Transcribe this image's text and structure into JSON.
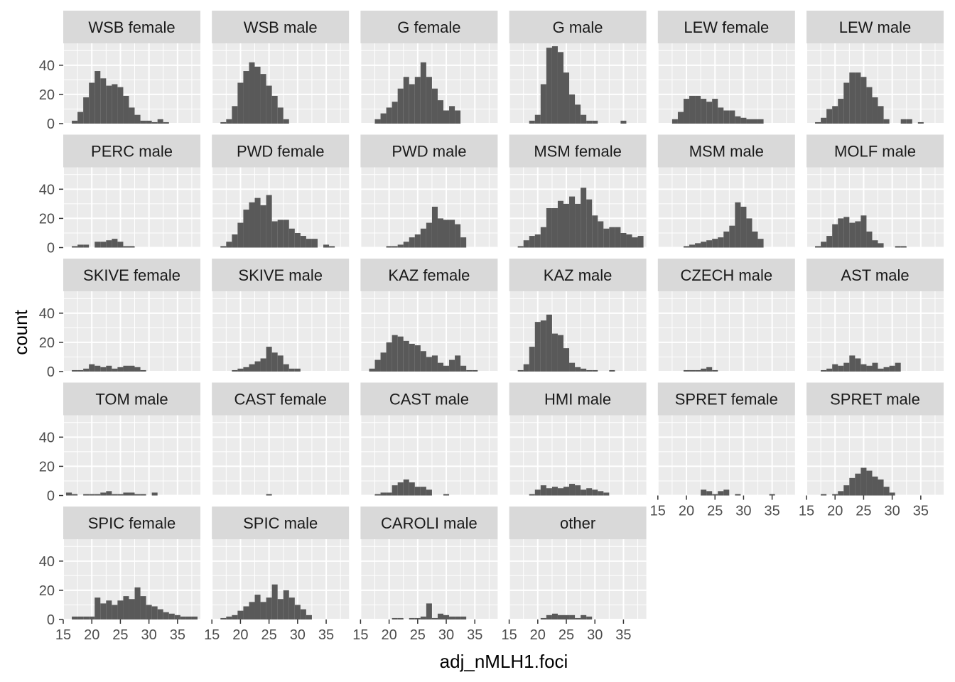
{
  "chart_data": {
    "type": "bar",
    "layout": "faceted-histogram",
    "xlabel": "adj_nMLH1.foci",
    "ylabel": "count",
    "xlim": [
      15,
      39
    ],
    "ylim": [
      0,
      55
    ],
    "x_ticks": [
      15,
      20,
      25,
      30,
      35
    ],
    "y_ticks": [
      0,
      20,
      40
    ],
    "bin_start": 15.5,
    "bin_width": 1,
    "bins": [
      "16",
      "17",
      "18",
      "19",
      "20",
      "21",
      "22",
      "23",
      "24",
      "25",
      "26",
      "27",
      "28",
      "29",
      "30",
      "31",
      "32",
      "33",
      "34",
      "35",
      "36",
      "37",
      "38"
    ],
    "bar_color": "#595959",
    "panel_bg": "#ebebeb",
    "strip_bg": "#d9d9d9",
    "grid_color": "#ffffff",
    "panels": [
      {
        "label": "WSB female",
        "values": [
          0,
          2,
          8,
          18,
          28,
          36,
          31,
          26,
          27,
          25,
          19,
          11,
          6,
          2,
          2,
          1,
          3,
          1,
          0,
          0,
          0,
          0,
          0
        ]
      },
      {
        "label": "WSB male",
        "values": [
          0,
          1,
          3,
          12,
          28,
          36,
          42,
          39,
          34,
          26,
          19,
          11,
          3,
          0,
          0,
          0,
          0,
          0,
          0,
          0,
          0,
          0,
          0
        ]
      },
      {
        "label": "G female",
        "values": [
          0,
          0,
          3,
          7,
          11,
          15,
          24,
          32,
          27,
          32,
          42,
          32,
          24,
          16,
          9,
          12,
          9,
          0,
          0,
          0,
          0,
          0,
          0
        ]
      },
      {
        "label": "G male",
        "values": [
          0,
          0,
          0,
          2,
          6,
          27,
          52,
          53,
          49,
          35,
          20,
          13,
          6,
          2,
          2,
          0,
          0,
          0,
          0,
          2,
          0,
          0,
          0
        ]
      },
      {
        "label": "LEW female",
        "values": [
          0,
          0,
          3,
          8,
          17,
          19,
          19,
          17,
          15,
          17,
          11,
          9,
          9,
          5,
          4,
          3,
          3,
          3,
          0,
          0,
          0,
          0,
          0
        ]
      },
      {
        "label": "LEW male",
        "values": [
          0,
          1,
          4,
          10,
          12,
          17,
          28,
          35,
          35,
          32,
          25,
          18,
          12,
          3,
          0,
          0,
          3,
          3,
          0,
          1,
          0,
          0,
          0
        ]
      },
      {
        "label": "PERC male",
        "values": [
          0,
          1,
          2,
          2,
          0,
          4,
          4,
          5,
          6,
          4,
          1,
          1,
          0,
          0,
          0,
          0,
          0,
          0,
          0,
          0,
          0,
          0,
          0
        ]
      },
      {
        "label": "PWD female",
        "values": [
          0,
          1,
          4,
          9,
          17,
          26,
          31,
          34,
          29,
          36,
          18,
          19,
          19,
          13,
          10,
          8,
          6,
          6,
          0,
          2,
          1,
          0,
          0
        ]
      },
      {
        "label": "PWD male",
        "values": [
          0,
          0,
          0,
          0,
          1,
          1,
          2,
          4,
          7,
          9,
          13,
          17,
          28,
          20,
          19,
          19,
          16,
          7,
          0,
          0,
          0,
          0,
          0
        ]
      },
      {
        "label": "MSM female",
        "values": [
          0,
          1,
          5,
          8,
          9,
          14,
          27,
          27,
          32,
          30,
          35,
          30,
          41,
          33,
          22,
          18,
          13,
          14,
          14,
          10,
          9,
          7,
          8
        ]
      },
      {
        "label": "MSM male",
        "values": [
          0,
          0,
          0,
          0,
          1,
          2,
          3,
          4,
          5,
          6,
          7,
          11,
          15,
          31,
          28,
          20,
          11,
          6,
          0,
          0,
          0,
          0,
          0
        ]
      },
      {
        "label": "MOLF male",
        "values": [
          0,
          1,
          4,
          8,
          16,
          20,
          21,
          17,
          18,
          22,
          11,
          5,
          3,
          0,
          0,
          1,
          1,
          0,
          0,
          0,
          0,
          0,
          0
        ]
      },
      {
        "label": "SKIVE female",
        "values": [
          0,
          1,
          1,
          2,
          5,
          4,
          3,
          4,
          2,
          3,
          4,
          4,
          3,
          1,
          0,
          0,
          0,
          0,
          0,
          0,
          0,
          0,
          0
        ]
      },
      {
        "label": "SKIVE male",
        "values": [
          0,
          0,
          0,
          1,
          2,
          3,
          5,
          7,
          9,
          17,
          13,
          11,
          5,
          2,
          2,
          0,
          0,
          0,
          0,
          0,
          0,
          0,
          0
        ]
      },
      {
        "label": "KAZ female",
        "values": [
          0,
          2,
          8,
          13,
          20,
          25,
          24,
          21,
          19,
          18,
          14,
          10,
          11,
          6,
          4,
          8,
          11,
          4,
          1,
          1,
          0,
          0,
          0
        ]
      },
      {
        "label": "KAZ male",
        "values": [
          0,
          1,
          5,
          17,
          34,
          35,
          39,
          26,
          25,
          16,
          6,
          3,
          2,
          1,
          1,
          0,
          0,
          1,
          0,
          0,
          0,
          0,
          0
        ]
      },
      {
        "label": "CZECH male",
        "values": [
          0,
          0,
          0,
          0,
          1,
          1,
          1,
          2,
          3,
          1,
          0,
          0,
          0,
          0,
          0,
          0,
          0,
          0,
          0,
          0,
          0,
          0,
          0
        ]
      },
      {
        "label": "AST male",
        "values": [
          0,
          0,
          1,
          2,
          5,
          4,
          6,
          11,
          9,
          5,
          4,
          6,
          2,
          3,
          4,
          6,
          0,
          0,
          0,
          0,
          0,
          0,
          0
        ]
      },
      {
        "label": "TOM male",
        "values": [
          2,
          1,
          0,
          1,
          1,
          1,
          2,
          3,
          1,
          1,
          2,
          2,
          1,
          1,
          0,
          2,
          0,
          0,
          0,
          0,
          0,
          0,
          0
        ]
      },
      {
        "label": "CAST female",
        "values": [
          0,
          0,
          0,
          0,
          0,
          0,
          0,
          0,
          0,
          1,
          0,
          0,
          0,
          0,
          0,
          0,
          0,
          0,
          0,
          0,
          0,
          0,
          0
        ]
      },
      {
        "label": "CAST male",
        "values": [
          0,
          0,
          1,
          2,
          2,
          7,
          9,
          11,
          9,
          6,
          6,
          4,
          0,
          0,
          1,
          0,
          0,
          0,
          0,
          0,
          0,
          0,
          0
        ]
      },
      {
        "label": "HMI male",
        "values": [
          0,
          0,
          0,
          1,
          4,
          7,
          5,
          6,
          5,
          6,
          8,
          7,
          4,
          5,
          4,
          3,
          2,
          0,
          0,
          0,
          0,
          0,
          0
        ]
      },
      {
        "label": "SPRET female",
        "values": [
          0,
          0,
          0,
          0,
          0,
          0,
          0,
          4,
          3,
          1,
          3,
          4,
          0,
          1,
          0,
          0,
          0,
          0,
          0,
          1,
          0,
          0,
          0
        ]
      },
      {
        "label": "SPRET male",
        "values": [
          0,
          0,
          1,
          0,
          1,
          3,
          7,
          12,
          15,
          19,
          17,
          13,
          11,
          6,
          2,
          0,
          0,
          0,
          0,
          0,
          0,
          0,
          0
        ]
      },
      {
        "label": "SPIC female",
        "values": [
          0,
          2,
          2,
          2,
          2,
          15,
          11,
          13,
          10,
          13,
          16,
          14,
          22,
          16,
          10,
          9,
          7,
          5,
          4,
          3,
          2,
          2,
          2
        ]
      },
      {
        "label": "SPIC male",
        "values": [
          0,
          1,
          2,
          3,
          6,
          9,
          12,
          17,
          12,
          15,
          24,
          14,
          20,
          15,
          10,
          7,
          3,
          0,
          0,
          0,
          0,
          0,
          0
        ]
      },
      {
        "label": "CAROLI male",
        "values": [
          0,
          0,
          0,
          0,
          0,
          1,
          1,
          0,
          1,
          1,
          2,
          11,
          1,
          4,
          3,
          2,
          2,
          2,
          0,
          0,
          0,
          0,
          0
        ]
      },
      {
        "label": "other",
        "values": [
          0,
          0,
          0,
          0,
          0,
          1,
          3,
          4,
          3,
          3,
          3,
          1,
          3,
          2,
          0,
          0,
          0,
          0,
          0,
          0,
          0,
          0,
          0
        ]
      }
    ]
  }
}
